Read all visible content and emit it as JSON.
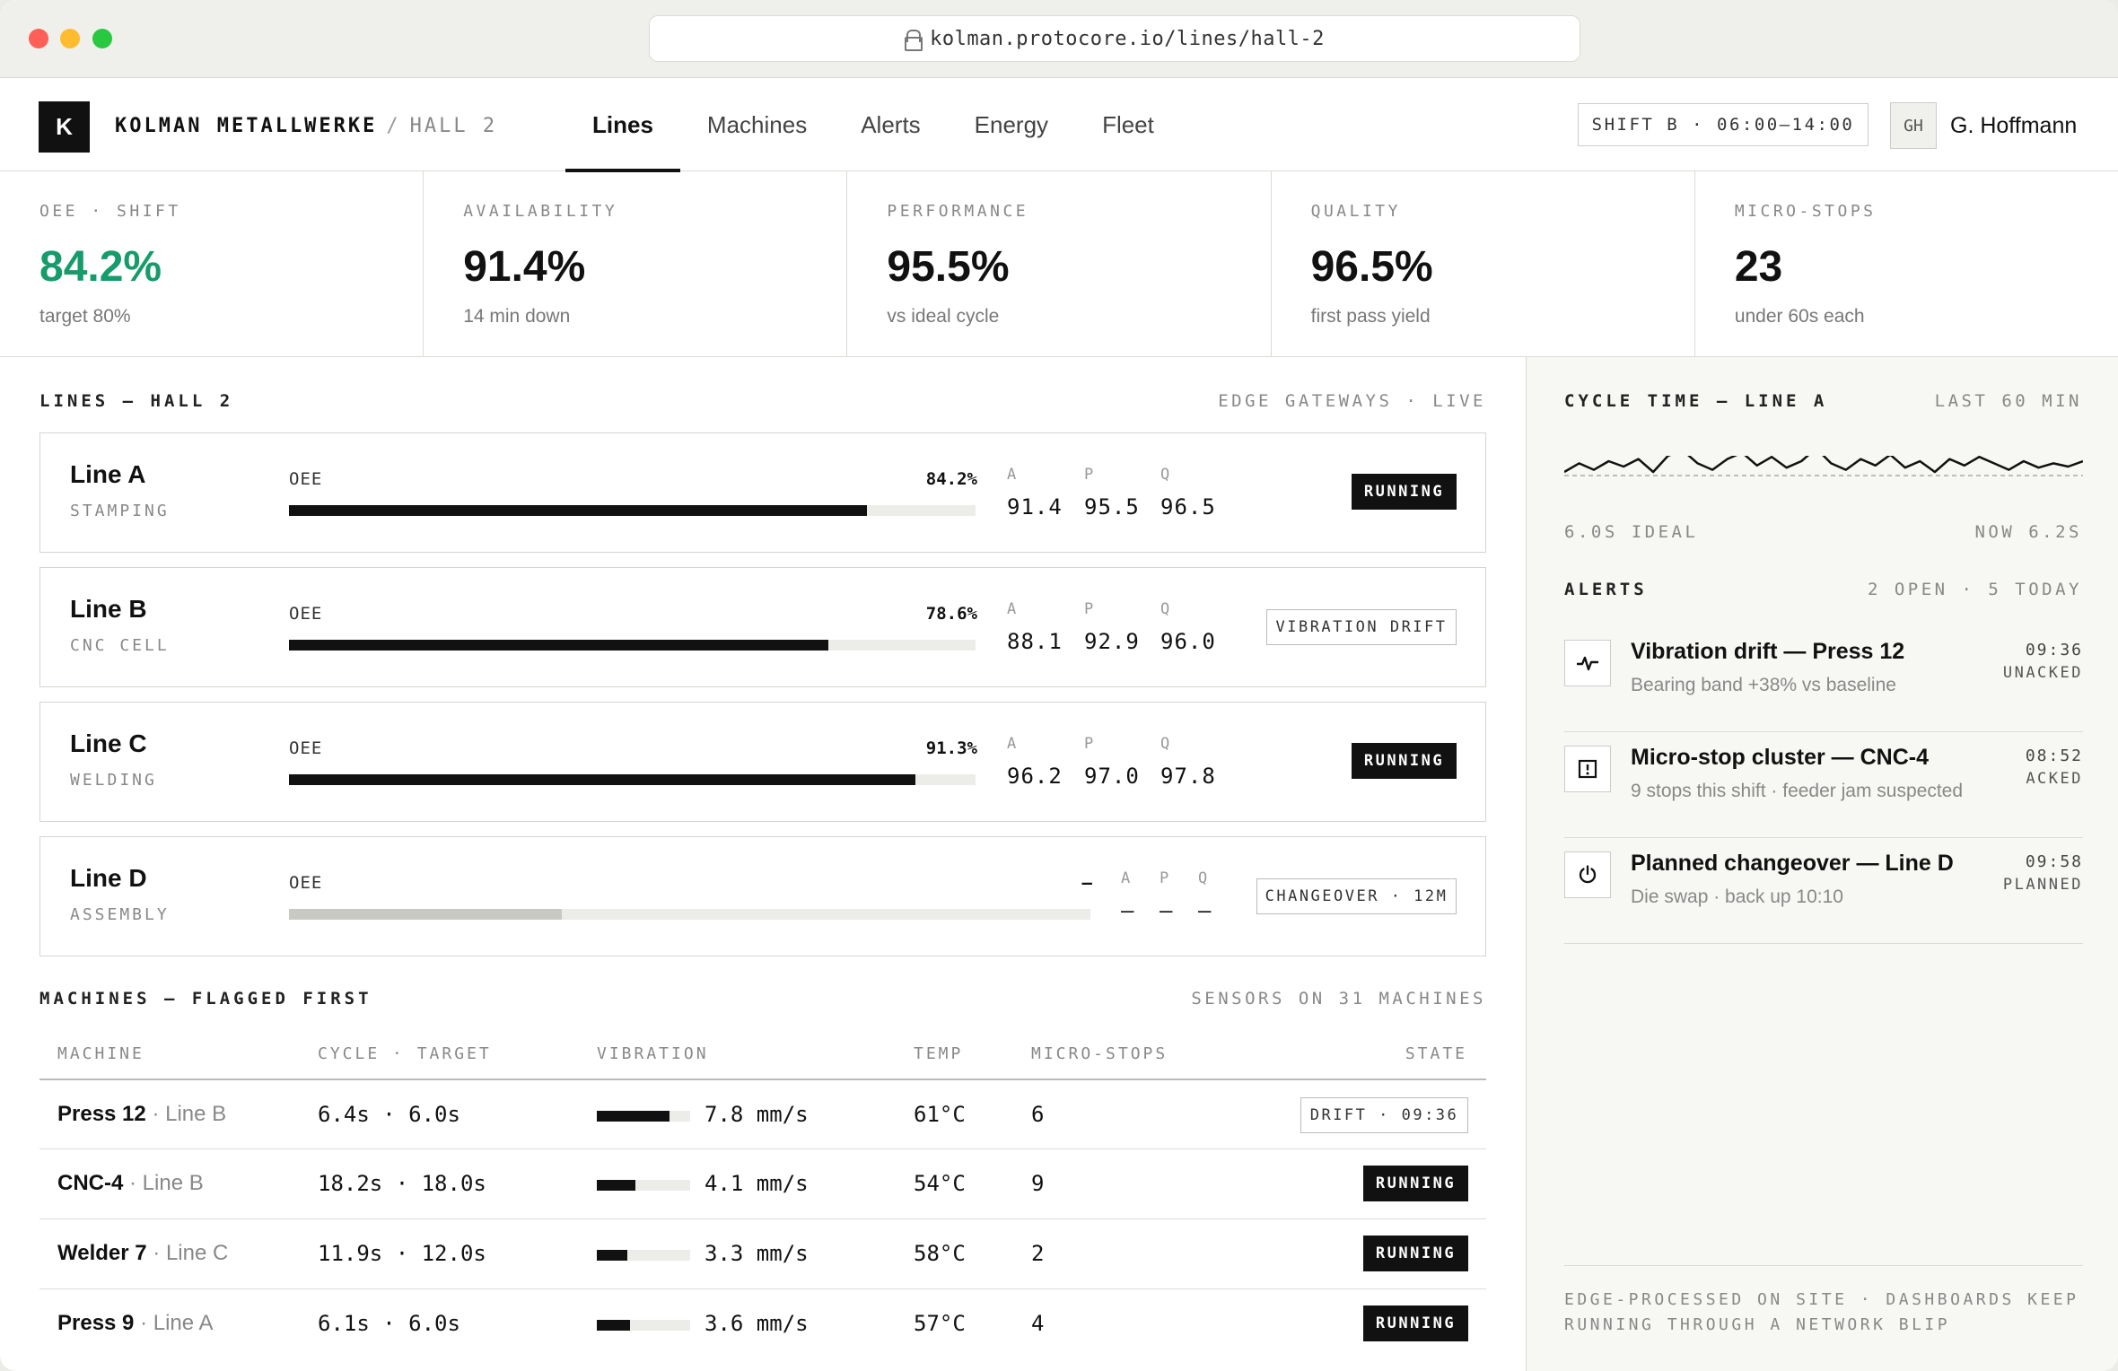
{
  "browser": {
    "url": "kolman.protocore.io/lines/hall-2"
  },
  "header": {
    "logo_letter": "K",
    "company": "KOLMAN METALLWERKE",
    "separator": "/",
    "hall": "HALL 2",
    "tabs": [
      "Lines",
      "Machines",
      "Alerts",
      "Energy",
      "Fleet"
    ],
    "active_tab": "Lines",
    "shift": "SHIFT B · 06:00–14:00",
    "user_initials": "GH",
    "user_name": "G. Hoffmann"
  },
  "kpis": [
    {
      "label": "OEE · SHIFT",
      "value": "84.2%",
      "sub": "target 80%"
    },
    {
      "label": "AVAILABILITY",
      "value": "91.4%",
      "sub": "14 min down"
    },
    {
      "label": "PERFORMANCE",
      "value": "95.5%",
      "sub": "vs ideal cycle"
    },
    {
      "label": "QUALITY",
      "value": "96.5%",
      "sub": "first pass yield"
    },
    {
      "label": "MICRO-STOPS",
      "value": "23",
      "sub": "under 60s each"
    }
  ],
  "lines_section": {
    "title": "LINES — HALL 2",
    "meta": "EDGE GATEWAYS · LIVE"
  },
  "lines": [
    {
      "name": "Line A",
      "type": "STAMPING",
      "oee_label": "OEE",
      "oee": "84.2%",
      "oee_fraction": 0.842,
      "a_label": "A",
      "p_label": "P",
      "q_label": "Q",
      "a": "91.4",
      "p": "95.5",
      "q": "96.5",
      "state": "RUNNING"
    },
    {
      "name": "Line B",
      "type": "CNC CELL",
      "oee_label": "OEE",
      "oee": "78.6%",
      "oee_fraction": 0.786,
      "a_label": "A",
      "p_label": "P",
      "q_label": "Q",
      "a": "88.1",
      "p": "92.9",
      "q": "96.0",
      "state": "VIBRATION DRIFT"
    },
    {
      "name": "Line C",
      "type": "WELDING",
      "oee_label": "OEE",
      "oee": "91.3%",
      "oee_fraction": 0.913,
      "a_label": "A",
      "p_label": "P",
      "q_label": "Q",
      "a": "96.2",
      "p": "97.0",
      "q": "97.8",
      "state": "RUNNING"
    },
    {
      "name": "Line D",
      "type": "ASSEMBLY",
      "oee_label": "OEE",
      "oee": "–",
      "oee_fraction": 0.34,
      "a_label": "A",
      "p_label": "P",
      "q_label": "Q",
      "a": "–",
      "p": "–",
      "q": "–",
      "state": "CHANGEOVER · 12M"
    }
  ],
  "machines_section": {
    "title": "MACHINES — FLAGGED FIRST",
    "meta": "SENSORS ON 31 MACHINES"
  },
  "machines_columns": [
    "MACHINE",
    "CYCLE · TARGET",
    "VIBRATION",
    "TEMP",
    "MICRO-STOPS",
    "STATE"
  ],
  "machines": [
    {
      "name": "Press 12",
      "line": "· Line B",
      "cycle": "6.4s · 6.0s",
      "vibration": "7.8 mm/s",
      "vibration_level": 0.78,
      "temp": "61°C",
      "micro_stops": "6",
      "state": "DRIFT · 09:36"
    },
    {
      "name": "CNC-4",
      "line": "· Line B",
      "cycle": "18.2s · 18.0s",
      "vibration": "4.1 mm/s",
      "vibration_level": 0.41,
      "temp": "54°C",
      "micro_stops": "9",
      "state": "RUNNING"
    },
    {
      "name": "Welder 7",
      "line": "· Line C",
      "cycle": "11.9s · 12.0s",
      "vibration": "3.3 mm/s",
      "vibration_level": 0.33,
      "temp": "58°C",
      "micro_stops": "2",
      "state": "RUNNING"
    },
    {
      "name": "Press 9",
      "line": "· Line A",
      "cycle": "6.1s · 6.0s",
      "vibration": "3.6 mm/s",
      "vibration_level": 0.36,
      "temp": "57°C",
      "micro_stops": "4",
      "state": "RUNNING"
    }
  ],
  "cycle_chart": {
    "title": "CYCLE TIME — LINE A",
    "meta": "LAST 60 MIN",
    "ideal_label": "6.0S IDEAL",
    "now_label": "NOW 6.2S",
    "ideal": 6.0,
    "series": [
      6.1,
      6.18,
      6.12,
      6.2,
      6.15,
      6.22,
      6.1,
      6.25,
      6.3,
      6.18,
      6.12,
      6.22,
      6.28,
      6.16,
      6.24,
      6.14,
      6.2,
      6.32,
      6.18,
      6.12,
      6.22,
      6.16,
      6.26,
      6.14,
      6.2,
      6.1,
      6.22,
      6.16,
      6.24,
      6.18,
      6.12,
      6.2,
      6.14,
      6.18,
      6.15,
      6.2
    ]
  },
  "alerts_section": {
    "title": "ALERTS",
    "meta": "2 OPEN · 5 TODAY"
  },
  "alerts": [
    {
      "icon": "pulse-icon",
      "title": "Vibration drift — Press 12",
      "sub": "Bearing band +38% vs baseline",
      "time": "09:36",
      "status": "UNACKED"
    },
    {
      "icon": "alert-square-icon",
      "title": "Micro-stop cluster — CNC-4",
      "sub": "9 stops this shift · feeder jam suspected",
      "time": "08:52",
      "status": "ACKED"
    },
    {
      "icon": "power-icon",
      "title": "Planned changeover — Line D",
      "sub": "Die swap · back up 10:10",
      "time": "09:58",
      "status": "PLANNED"
    }
  ],
  "footer_note": "EDGE-PROCESSED ON SITE · DASHBOARDS KEEP RUNNING THROUGH A NETWORK BLIP"
}
